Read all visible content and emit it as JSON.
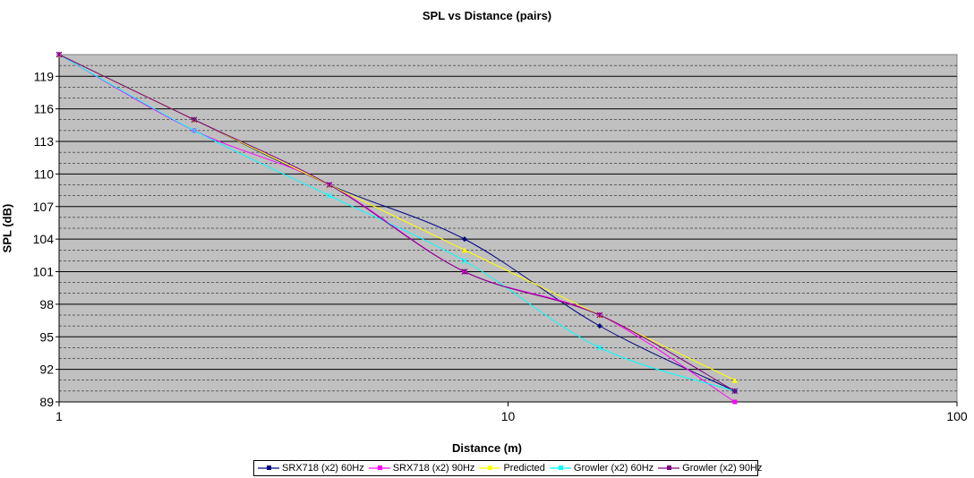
{
  "chart_data": {
    "type": "line",
    "title": "SPL vs Distance (pairs)",
    "xlabel": "Distance (m)",
    "ylabel": "SPL (dB)",
    "x_scale": "log",
    "xlim": [
      1,
      100
    ],
    "ylim": [
      89,
      121
    ],
    "x_ticks": [
      "1",
      "10",
      "100"
    ],
    "y_ticks": [
      "89",
      "92",
      "95",
      "98",
      "101",
      "104",
      "107",
      "110",
      "113",
      "116",
      "119"
    ],
    "grid": true,
    "plot_background": "#c0c0c0",
    "legend_position": "bottom",
    "series": [
      {
        "name": "SRX718 (x2) 60Hz",
        "color": "#000080",
        "marker": "diamond",
        "x": [
          1,
          2,
          4,
          8,
          16,
          32
        ],
        "y": [
          121,
          115,
          109,
          104,
          96,
          90
        ]
      },
      {
        "name": "SRX718 (x2) 90Hz",
        "color": "#ff00ff",
        "marker": "square",
        "x": [
          1,
          2,
          4,
          8,
          16,
          32
        ],
        "y": [
          121,
          114,
          109,
          101,
          97,
          89
        ]
      },
      {
        "name": "Predicted",
        "color": "#ffff00",
        "marker": "triangle",
        "x": [
          1,
          2,
          4,
          8,
          16,
          32
        ],
        "y": [
          121,
          115,
          109,
          103,
          97,
          91
        ]
      },
      {
        "name": "Growler (x2) 60Hz",
        "color": "#00ffff",
        "marker": "x",
        "x": [
          1,
          2,
          4,
          8,
          16,
          32
        ],
        "y": [
          121,
          114,
          108,
          102,
          94,
          90
        ]
      },
      {
        "name": "Growler (x2) 90Hz",
        "color": "#800080",
        "marker": "star",
        "x": [
          1,
          2,
          4,
          8,
          16,
          32
        ],
        "y": [
          121,
          115,
          109,
          101,
          97,
          90
        ]
      }
    ]
  }
}
